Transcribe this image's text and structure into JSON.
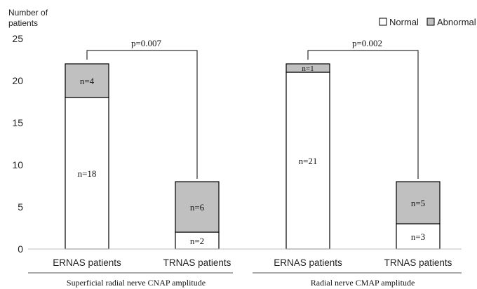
{
  "chart_data": {
    "type": "bar",
    "stacked": true,
    "ylabel": "Number of\npatients",
    "ylim": [
      0,
      25
    ],
    "yticks": [
      0,
      5,
      10,
      15,
      20,
      25
    ],
    "grid": false,
    "legend_position": "top-right",
    "series": [
      {
        "name": "Normal",
        "color": "#ffffff"
      },
      {
        "name": "Abnormal",
        "color": "#c0c0c0"
      }
    ],
    "groups": [
      {
        "title": "Superficial radial nerve CNAP amplitude",
        "p_value": "p=0.007",
        "bars": [
          {
            "category": "ERNAS patients",
            "values": [
              18,
              4
            ],
            "labels": [
              "n=18",
              "n=4"
            ]
          },
          {
            "category": "TRNAS patients",
            "values": [
              2,
              6
            ],
            "labels": [
              "n=2",
              "n=6"
            ]
          }
        ]
      },
      {
        "title": "Radial nerve CMAP amplitude",
        "p_value": "p=0.002",
        "bars": [
          {
            "category": "ERNAS patients",
            "values": [
              21,
              1
            ],
            "labels": [
              "n=21",
              "n=1"
            ]
          },
          {
            "category": "TRNAS patients",
            "values": [
              3,
              5
            ],
            "labels": [
              "n=3",
              "n=5"
            ]
          }
        ]
      }
    ]
  }
}
